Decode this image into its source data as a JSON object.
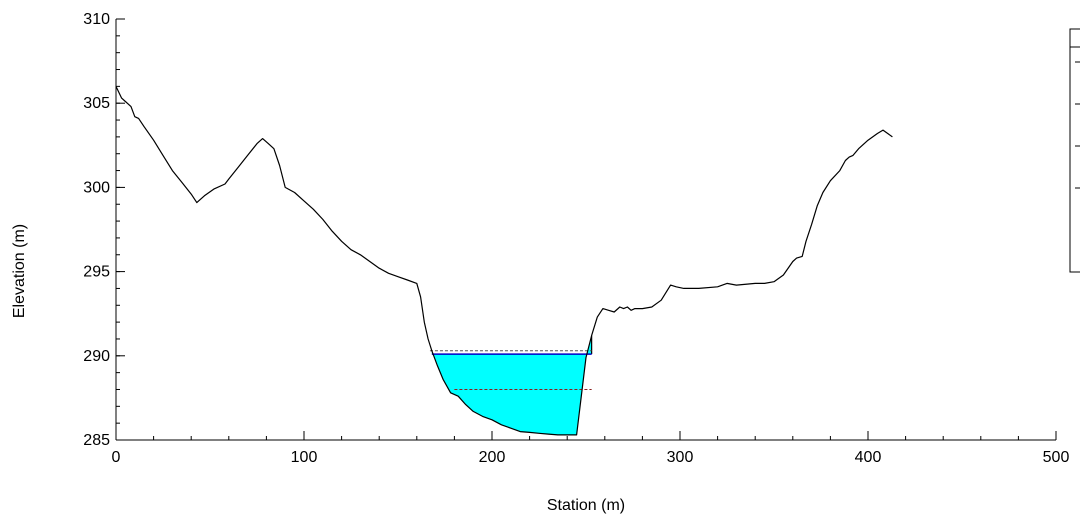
{
  "chart_data": {
    "type": "line",
    "title": "",
    "xlabel": "Station (m)",
    "ylabel": "Elevation (m)",
    "xlim": [
      0,
      500
    ],
    "ylim": [
      285,
      310
    ],
    "x_ticks": [
      {
        "value": 0,
        "label": "0"
      },
      {
        "value": 100,
        "label": "100"
      },
      {
        "value": 200,
        "label": "200"
      },
      {
        "value": 300,
        "label": "300"
      },
      {
        "value": 400,
        "label": "400"
      },
      {
        "value": 500,
        "label": "500"
      }
    ],
    "y_ticks": [
      {
        "value": 285,
        "label": "285"
      },
      {
        "value": 290,
        "label": "290"
      },
      {
        "value": 295,
        "label": "295"
      },
      {
        "value": 300,
        "label": "300"
      },
      {
        "value": 305,
        "label": "305"
      },
      {
        "value": 310,
        "label": "310"
      }
    ],
    "grid": false,
    "ground_profile": {
      "x": [
        0,
        3,
        5,
        8,
        10,
        12,
        15,
        20,
        25,
        30,
        35,
        40,
        43,
        47,
        52,
        58,
        60,
        65,
        70,
        75,
        78,
        81,
        84,
        87,
        90,
        95,
        100,
        105,
        110,
        115,
        120,
        125,
        130,
        135,
        140,
        145,
        150,
        155,
        160,
        162,
        164,
        166,
        168,
        171,
        174,
        178,
        182,
        186,
        190,
        195,
        200,
        205,
        210,
        215,
        220,
        225,
        230,
        235,
        240,
        245,
        250,
        253,
        256,
        259,
        262,
        265,
        268,
        270,
        272,
        274,
        276,
        278,
        280,
        285,
        290,
        295,
        298,
        302,
        310,
        320,
        325,
        330,
        340,
        345,
        350,
        355,
        360,
        362,
        365,
        367,
        370,
        373,
        376,
        380,
        385,
        388,
        390,
        392,
        395,
        400,
        405,
        408,
        413
      ],
      "y": [
        306.0,
        305.3,
        305.1,
        304.8,
        304.2,
        304.1,
        303.6,
        302.8,
        301.9,
        301.0,
        300.3,
        299.6,
        299.1,
        299.5,
        299.9,
        300.2,
        300.5,
        301.2,
        301.9,
        302.6,
        302.9,
        302.6,
        302.3,
        301.3,
        300.0,
        299.7,
        299.2,
        298.7,
        298.1,
        297.4,
        296.8,
        296.3,
        296.0,
        295.6,
        295.2,
        294.9,
        294.7,
        294.5,
        294.3,
        293.5,
        292.0,
        291.0,
        290.3,
        289.4,
        288.6,
        287.8,
        287.6,
        287.1,
        286.7,
        286.4,
        286.2,
        285.9,
        285.7,
        285.5,
        285.45,
        285.4,
        285.35,
        285.3,
        285.3,
        285.3,
        289.9,
        291.2,
        292.3,
        292.8,
        292.7,
        292.6,
        292.9,
        292.8,
        292.9,
        292.7,
        292.8,
        292.8,
        292.8,
        292.9,
        293.3,
        294.2,
        294.1,
        294.0,
        294.0,
        294.1,
        294.3,
        294.2,
        294.3,
        294.3,
        294.4,
        294.8,
        295.6,
        295.8,
        295.9,
        296.8,
        297.8,
        298.9,
        299.7,
        300.4,
        301.0,
        301.6,
        301.8,
        301.9,
        302.3,
        302.8,
        303.2,
        303.4,
        303.0
      ]
    },
    "water_fill": {
      "surface_elevation": 290.1,
      "x_left": 168,
      "x_right": 253,
      "color": "#00ffff"
    },
    "reference_lines": [
      {
        "elevation": 290.3,
        "x_start": 167,
        "x_end": 253,
        "style": "dashed",
        "color": "#555555"
      },
      {
        "elevation": 290.1,
        "x_start": 168,
        "x_end": 253,
        "style": "solid",
        "color": "#0000c8"
      },
      {
        "elevation": 288.0,
        "x_start": 180,
        "x_end": 253,
        "style": "dashed",
        "color": "#8b2020"
      }
    ],
    "legend": {
      "placement": "top-right",
      "entries": [
        "",
        "",
        "",
        ""
      ]
    },
    "colors": {
      "ground": "#000000",
      "water": "#00ffff",
      "axis": "#000000"
    }
  }
}
